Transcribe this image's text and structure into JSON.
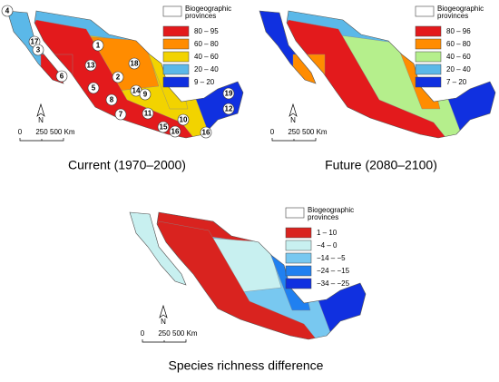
{
  "maps": [
    {
      "caption": "Current (1970–2000)",
      "legend": {
        "title_lines": [
          "Biogeographic",
          "provinces"
        ],
        "items": [
          {
            "label": "80 – 95",
            "color": "#e31a1c"
          },
          {
            "label": "60 – 80",
            "color": "#ff8c00"
          },
          {
            "label": "40 – 60",
            "color": "#f2d300"
          },
          {
            "label": "20 – 40",
            "color": "#5bb8e8"
          },
          {
            "label": "9 – 20",
            "color": "#1030e0"
          }
        ]
      },
      "north": "N",
      "scale_labels": [
        "0",
        "250",
        "500 Km"
      ],
      "province_labels": [
        "4",
        "17",
        "1",
        "3",
        "18",
        "13",
        "2",
        "6",
        "5",
        "14",
        "9",
        "8",
        "7",
        "11",
        "19",
        "12",
        "15",
        "10",
        "16",
        "16"
      ]
    },
    {
      "caption": "Future (2080–2100)",
      "legend": {
        "title_lines": [
          "Biogeographic",
          "provinces"
        ],
        "items": [
          {
            "label": "80 – 96",
            "color": "#e31a1c"
          },
          {
            "label": "60 – 80",
            "color": "#ff8c00"
          },
          {
            "label": "40 – 60",
            "color": "#b5ef8c"
          },
          {
            "label": "20 – 40",
            "color": "#5bb8e8"
          },
          {
            "label": "7 – 20",
            "color": "#1030e0"
          }
        ]
      },
      "north": "N",
      "scale_labels": [
        "0",
        "250",
        "500 Km"
      ]
    },
    {
      "caption": "Species richness difference",
      "legend": {
        "title_lines": [
          "Biogeographic",
          "provinces"
        ],
        "items": [
          {
            "label": "1 – 10",
            "color": "#d9231f"
          },
          {
            "label": "−4 – 0",
            "color": "#c8f0f0"
          },
          {
            "label": "−14 – −5",
            "color": "#78c8f0"
          },
          {
            "label": "−24 – −15",
            "color": "#2080f0"
          },
          {
            "label": "−34 – −25",
            "color": "#1030e0"
          }
        ]
      },
      "north": "N",
      "scale_labels": [
        "0",
        "250",
        "500 Km"
      ]
    }
  ]
}
